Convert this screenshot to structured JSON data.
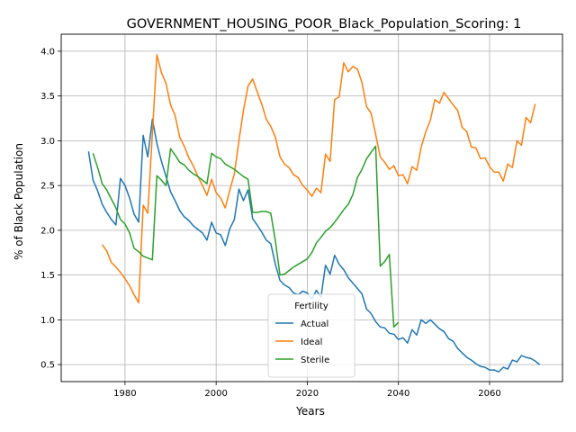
{
  "chart_data": {
    "type": "line",
    "title": "GOVERNMENT_HOUSING_POOR_Black_Population_Scoring: 1",
    "xlabel": "Years",
    "ylabel": "% of Black Population",
    "xlim": [
      1966,
      2076
    ],
    "ylim": [
      0.31,
      4.19
    ],
    "grid": true,
    "legend": {
      "title": "Fertility",
      "placement": "bottom-center"
    },
    "x_ticks": [
      {
        "value": 1980,
        "label": "1980"
      },
      {
        "value": 2000,
        "label": "2000"
      },
      {
        "value": 2020,
        "label": "2020"
      },
      {
        "value": 2040,
        "label": "2040"
      },
      {
        "value": 2060,
        "label": "2060"
      }
    ],
    "y_ticks": [
      {
        "value": 0.5,
        "label": "0.5"
      },
      {
        "value": 1.0,
        "label": "1.0"
      },
      {
        "value": 1.5,
        "label": "1.5"
      },
      {
        "value": 2.0,
        "label": "2.0"
      },
      {
        "value": 2.5,
        "label": "2.5"
      },
      {
        "value": 3.0,
        "label": "3.0"
      },
      {
        "value": 3.5,
        "label": "3.5"
      },
      {
        "value": 4.0,
        "label": "4.0"
      }
    ],
    "series": [
      {
        "name": "Actual",
        "color": "#1f77b4",
        "points": [
          [
            1972,
            2.88
          ],
          [
            1973,
            2.56
          ],
          [
            1974,
            2.44
          ],
          [
            1975,
            2.29
          ],
          [
            1976,
            2.2
          ],
          [
            1977,
            2.12
          ],
          [
            1978,
            2.06
          ],
          [
            1979,
            2.58
          ],
          [
            1980,
            2.5
          ],
          [
            1981,
            2.36
          ],
          [
            1982,
            2.18
          ],
          [
            1983,
            2.09
          ],
          [
            1984,
            3.06
          ],
          [
            1985,
            2.82
          ],
          [
            1986,
            3.24
          ],
          [
            1987,
            2.97
          ],
          [
            1988,
            2.77
          ],
          [
            1989,
            2.6
          ],
          [
            1990,
            2.43
          ],
          [
            1991,
            2.33
          ],
          [
            1992,
            2.22
          ],
          [
            1993,
            2.15
          ],
          [
            1994,
            2.11
          ],
          [
            1995,
            2.05
          ],
          [
            1996,
            2.01
          ],
          [
            1997,
            1.97
          ],
          [
            1998,
            1.89
          ],
          [
            1999,
            2.09
          ],
          [
            2000,
            1.97
          ],
          [
            2001,
            1.95
          ],
          [
            2002,
            1.83
          ],
          [
            2003,
            2.02
          ],
          [
            2004,
            2.12
          ],
          [
            2005,
            2.46
          ],
          [
            2006,
            2.33
          ],
          [
            2007,
            2.45
          ],
          [
            2008,
            2.13
          ],
          [
            2009,
            2.06
          ],
          [
            2010,
            1.98
          ],
          [
            2011,
            1.89
          ],
          [
            2012,
            1.85
          ],
          [
            2013,
            1.62
          ],
          [
            2014,
            1.44
          ],
          [
            2015,
            1.39
          ],
          [
            2016,
            1.36
          ],
          [
            2017,
            1.3
          ],
          [
            2018,
            1.28
          ],
          [
            2019,
            1.32
          ],
          [
            2020,
            1.3
          ],
          [
            2021,
            1.23
          ],
          [
            2022,
            1.33
          ],
          [
            2023,
            1.25
          ],
          [
            2024,
            1.61
          ],
          [
            2025,
            1.51
          ],
          [
            2026,
            1.72
          ],
          [
            2027,
            1.62
          ],
          [
            2028,
            1.56
          ],
          [
            2029,
            1.47
          ],
          [
            2030,
            1.41
          ],
          [
            2031,
            1.35
          ],
          [
            2032,
            1.29
          ],
          [
            2033,
            1.12
          ],
          [
            2034,
            1.07
          ],
          [
            2035,
            0.98
          ],
          [
            2036,
            0.92
          ],
          [
            2037,
            0.91
          ],
          [
            2038,
            0.85
          ],
          [
            2039,
            0.84
          ],
          [
            2040,
            0.78
          ],
          [
            2041,
            0.8
          ],
          [
            2042,
            0.74
          ],
          [
            2043,
            0.89
          ],
          [
            2044,
            0.83
          ],
          [
            2045,
            1.0
          ],
          [
            2046,
            0.96
          ],
          [
            2047,
            1.0
          ],
          [
            2048,
            0.95
          ],
          [
            2049,
            0.9
          ],
          [
            2050,
            0.87
          ],
          [
            2051,
            0.79
          ],
          [
            2052,
            0.76
          ],
          [
            2053,
            0.68
          ],
          [
            2054,
            0.63
          ],
          [
            2055,
            0.58
          ],
          [
            2056,
            0.55
          ],
          [
            2057,
            0.51
          ],
          [
            2058,
            0.48
          ],
          [
            2059,
            0.47
          ],
          [
            2060,
            0.44
          ],
          [
            2061,
            0.44
          ],
          [
            2062,
            0.42
          ],
          [
            2063,
            0.47
          ],
          [
            2064,
            0.45
          ],
          [
            2065,
            0.55
          ],
          [
            2066,
            0.53
          ],
          [
            2067,
            0.6
          ],
          [
            2068,
            0.58
          ],
          [
            2069,
            0.57
          ],
          [
            2070,
            0.54
          ],
          [
            2071,
            0.5
          ]
        ]
      },
      {
        "name": "Ideal",
        "color": "#ff7f0e",
        "points": [
          [
            1975,
            1.84
          ],
          [
            1976,
            1.77
          ],
          [
            1977,
            1.64
          ],
          [
            1978,
            1.59
          ],
          [
            1979,
            1.53
          ],
          [
            1980,
            1.46
          ],
          [
            1981,
            1.38
          ],
          [
            1982,
            1.28
          ],
          [
            1983,
            1.19
          ],
          [
            1984,
            2.28
          ],
          [
            1985,
            2.19
          ],
          [
            1986,
            3.08
          ],
          [
            1987,
            3.96
          ],
          [
            1988,
            3.76
          ],
          [
            1989,
            3.64
          ],
          [
            1990,
            3.4
          ],
          [
            1991,
            3.28
          ],
          [
            1992,
            3.04
          ],
          [
            1993,
            2.94
          ],
          [
            1994,
            2.81
          ],
          [
            1995,
            2.72
          ],
          [
            1996,
            2.6
          ],
          [
            1997,
            2.5
          ],
          [
            1998,
            2.39
          ],
          [
            1999,
            2.57
          ],
          [
            2000,
            2.42
          ],
          [
            2001,
            2.36
          ],
          [
            2002,
            2.25
          ],
          [
            2003,
            2.45
          ],
          [
            2004,
            2.63
          ],
          [
            2005,
            3.0
          ],
          [
            2006,
            3.34
          ],
          [
            2007,
            3.61
          ],
          [
            2008,
            3.69
          ],
          [
            2009,
            3.55
          ],
          [
            2010,
            3.41
          ],
          [
            2011,
            3.24
          ],
          [
            2012,
            3.16
          ],
          [
            2013,
            3.04
          ],
          [
            2014,
            2.82
          ],
          [
            2015,
            2.74
          ],
          [
            2016,
            2.7
          ],
          [
            2017,
            2.62
          ],
          [
            2018,
            2.59
          ],
          [
            2019,
            2.5
          ],
          [
            2020,
            2.45
          ],
          [
            2021,
            2.38
          ],
          [
            2022,
            2.47
          ],
          [
            2023,
            2.42
          ],
          [
            2024,
            2.85
          ],
          [
            2025,
            2.77
          ],
          [
            2026,
            3.46
          ],
          [
            2027,
            3.49
          ],
          [
            2028,
            3.87
          ],
          [
            2029,
            3.77
          ],
          [
            2030,
            3.83
          ],
          [
            2031,
            3.8
          ],
          [
            2032,
            3.65
          ],
          [
            2033,
            3.38
          ],
          [
            2034,
            3.31
          ],
          [
            2035,
            3.07
          ],
          [
            2036,
            2.82
          ],
          [
            2037,
            2.76
          ],
          [
            2038,
            2.68
          ],
          [
            2039,
            2.72
          ],
          [
            2040,
            2.61
          ],
          [
            2041,
            2.62
          ],
          [
            2042,
            2.52
          ],
          [
            2043,
            2.71
          ],
          [
            2044,
            2.67
          ],
          [
            2045,
            2.93
          ],
          [
            2046,
            3.1
          ],
          [
            2047,
            3.23
          ],
          [
            2048,
            3.46
          ],
          [
            2049,
            3.42
          ],
          [
            2050,
            3.54
          ],
          [
            2051,
            3.47
          ],
          [
            2052,
            3.4
          ],
          [
            2053,
            3.34
          ],
          [
            2054,
            3.15
          ],
          [
            2055,
            3.1
          ],
          [
            2056,
            2.93
          ],
          [
            2057,
            2.92
          ],
          [
            2058,
            2.8
          ],
          [
            2059,
            2.81
          ],
          [
            2060,
            2.71
          ],
          [
            2061,
            2.65
          ],
          [
            2062,
            2.65
          ],
          [
            2063,
            2.55
          ],
          [
            2064,
            2.74
          ],
          [
            2065,
            2.7
          ],
          [
            2066,
            3.0
          ],
          [
            2067,
            2.95
          ],
          [
            2068,
            3.26
          ],
          [
            2069,
            3.2
          ],
          [
            2070,
            3.41
          ]
        ]
      },
      {
        "name": "Sterile",
        "color": "#2ca02c",
        "points": [
          [
            1973,
            2.86
          ],
          [
            1974,
            2.7
          ],
          [
            1975,
            2.52
          ],
          [
            1976,
            2.45
          ],
          [
            1977,
            2.35
          ],
          [
            1978,
            2.25
          ],
          [
            1979,
            2.12
          ],
          [
            1980,
            2.07
          ],
          [
            1981,
            1.97
          ],
          [
            1982,
            1.8
          ],
          [
            1983,
            1.76
          ],
          [
            1984,
            1.71
          ],
          [
            1985,
            1.69
          ],
          [
            1986,
            1.67
          ],
          [
            1987,
            2.61
          ],
          [
            1988,
            2.56
          ],
          [
            1989,
            2.5
          ],
          [
            1990,
            2.91
          ],
          [
            1991,
            2.84
          ],
          [
            1992,
            2.76
          ],
          [
            1993,
            2.73
          ],
          [
            1994,
            2.67
          ],
          [
            1995,
            2.63
          ],
          [
            1996,
            2.6
          ],
          [
            1997,
            2.56
          ],
          [
            1998,
            2.52
          ],
          [
            1999,
            2.86
          ],
          [
            2000,
            2.82
          ],
          [
            2001,
            2.8
          ],
          [
            2002,
            2.74
          ],
          [
            2003,
            2.71
          ],
          [
            2004,
            2.68
          ],
          [
            2005,
            2.64
          ],
          [
            2006,
            2.6
          ],
          [
            2007,
            2.57
          ],
          [
            2008,
            2.2
          ],
          [
            2009,
            2.2
          ],
          [
            2010,
            2.21
          ],
          [
            2011,
            2.21
          ],
          [
            2012,
            2.19
          ],
          [
            2013,
            1.88
          ],
          [
            2014,
            1.5
          ],
          [
            2015,
            1.51
          ],
          [
            2016,
            1.55
          ],
          [
            2017,
            1.59
          ],
          [
            2018,
            1.62
          ],
          [
            2019,
            1.65
          ],
          [
            2020,
            1.68
          ],
          [
            2021,
            1.75
          ],
          [
            2022,
            1.86
          ],
          [
            2023,
            1.92
          ],
          [
            2024,
            1.99
          ],
          [
            2025,
            2.03
          ],
          [
            2026,
            2.09
          ],
          [
            2027,
            2.16
          ],
          [
            2028,
            2.23
          ],
          [
            2029,
            2.29
          ],
          [
            2030,
            2.4
          ],
          [
            2031,
            2.59
          ],
          [
            2032,
            2.68
          ],
          [
            2033,
            2.8
          ],
          [
            2034,
            2.87
          ],
          [
            2035,
            2.94
          ],
          [
            2036,
            1.6
          ],
          [
            2037,
            1.65
          ],
          [
            2038,
            1.73
          ],
          [
            2039,
            0.92
          ],
          [
            2040,
            0.97
          ]
        ]
      }
    ]
  }
}
